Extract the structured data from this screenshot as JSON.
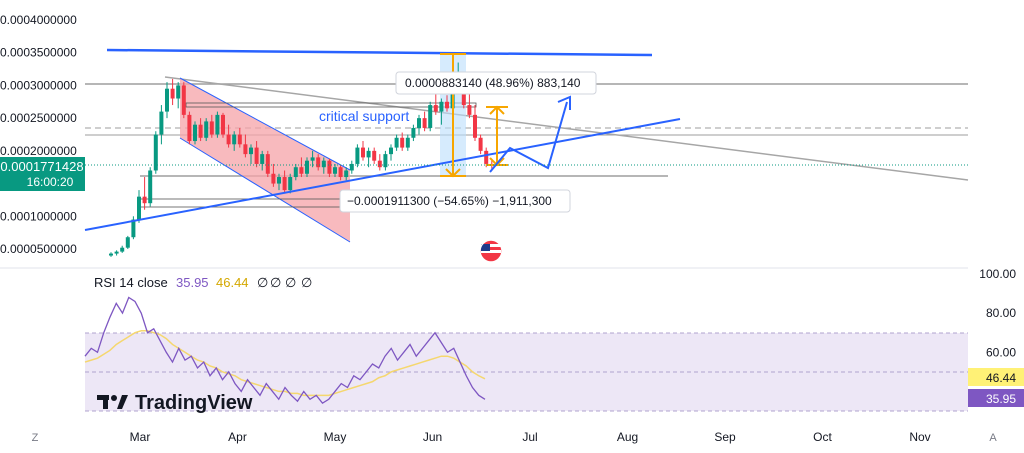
{
  "chart_data": [
    {
      "type": "candlestick",
      "title": "",
      "y_axis": {
        "ticks": [
          "0.0004000000",
          "0.0003500000",
          "0.0003000000",
          "0.0002500000",
          "0.0002000000",
          "0.0001500000",
          "0.0001000000",
          "0.0000500000"
        ],
        "tick_values": [
          0.0004,
          0.00035,
          0.0003,
          0.00025,
          0.0002,
          0.00015,
          0.0001,
          5e-05
        ],
        "range": [
          3e-05,
          0.00042
        ],
        "current_price_label": "0.0001771428",
        "countdown_label": "16:00:20",
        "current_price": 0.0001771428
      },
      "x_axis": {
        "ticks": [
          "Mar",
          "Apr",
          "May",
          "Jun",
          "Jul",
          "Aug",
          "Sep",
          "Oct",
          "Nov"
        ]
      },
      "candles": [
        {
          "t": -5,
          "o": 4e-05,
          "h": 4.5e-05,
          "l": 3.8e-05,
          "c": 4.3e-05
        },
        {
          "t": -4,
          "o": 4.3e-05,
          "h": 4.8e-05,
          "l": 4e-05,
          "c": 4.6e-05
        },
        {
          "t": -3,
          "o": 4.6e-05,
          "h": 5.5e-05,
          "l": 4.4e-05,
          "c": 5.2e-05
        },
        {
          "t": -2,
          "o": 5.2e-05,
          "h": 7e-05,
          "l": 5e-05,
          "c": 6.8e-05
        },
        {
          "t": -1,
          "o": 6.8e-05,
          "h": 0.0001,
          "l": 6.5e-05,
          "c": 9.5e-05
        },
        {
          "t": 0,
          "o": 9.5e-05,
          "h": 0.00014,
          "l": 9e-05,
          "c": 0.00013
        },
        {
          "t": 1,
          "o": 0.00013,
          "h": 0.00016,
          "l": 0.00011,
          "c": 0.00012
        },
        {
          "t": 2,
          "o": 0.00012,
          "h": 0.000175,
          "l": 0.000115,
          "c": 0.00017
        },
        {
          "t": 3,
          "o": 0.00017,
          "h": 0.00023,
          "l": 0.000165,
          "c": 0.000225
        },
        {
          "t": 4,
          "o": 0.000225,
          "h": 0.00027,
          "l": 0.00021,
          "c": 0.00026
        },
        {
          "t": 5,
          "o": 0.00026,
          "h": 0.000305,
          "l": 0.00025,
          "c": 0.000295
        },
        {
          "t": 6,
          "o": 0.000295,
          "h": 0.00031,
          "l": 0.00027,
          "c": 0.00028
        },
        {
          "t": 7,
          "o": 0.00028,
          "h": 0.000305,
          "l": 0.000265,
          "c": 0.0003
        },
        {
          "t": 8,
          "o": 0.0003,
          "h": 0.000305,
          "l": 0.00025,
          "c": 0.000255
        },
        {
          "t": 9,
          "o": 0.000255,
          "h": 0.00026,
          "l": 0.00021,
          "c": 0.000215
        },
        {
          "t": 10,
          "o": 0.000215,
          "h": 0.000245,
          "l": 0.00021,
          "c": 0.00024
        },
        {
          "t": 11,
          "o": 0.00024,
          "h": 0.00025,
          "l": 0.000215,
          "c": 0.00022
        },
        {
          "t": 12,
          "o": 0.00022,
          "h": 0.00025,
          "l": 0.000215,
          "c": 0.000245
        },
        {
          "t": 13,
          "o": 0.000245,
          "h": 0.000255,
          "l": 0.00022,
          "c": 0.000225
        },
        {
          "t": 14,
          "o": 0.000225,
          "h": 0.00026,
          "l": 0.00022,
          "c": 0.000255
        },
        {
          "t": 15,
          "o": 0.000255,
          "h": 0.000258,
          "l": 0.00022,
          "c": 0.000225
        },
        {
          "t": 16,
          "o": 0.000225,
          "h": 0.00024,
          "l": 0.000205,
          "c": 0.00021
        },
        {
          "t": 17,
          "o": 0.00021,
          "h": 0.00023,
          "l": 0.0002,
          "c": 0.000225
        },
        {
          "t": 18,
          "o": 0.000225,
          "h": 0.000235,
          "l": 0.000205,
          "c": 0.00021
        },
        {
          "t": 19,
          "o": 0.00021,
          "h": 0.000225,
          "l": 0.00019,
          "c": 0.000195
        },
        {
          "t": 20,
          "o": 0.000195,
          "h": 0.00021,
          "l": 0.00018,
          "c": 0.000205
        },
        {
          "t": 21,
          "o": 0.000205,
          "h": 0.000215,
          "l": 0.000175,
          "c": 0.00018
        },
        {
          "t": 22,
          "o": 0.00018,
          "h": 0.0002,
          "l": 0.00017,
          "c": 0.000195
        },
        {
          "t": 23,
          "o": 0.000195,
          "h": 0.0002,
          "l": 0.00016,
          "c": 0.000165
        },
        {
          "t": 24,
          "o": 0.000165,
          "h": 0.00018,
          "l": 0.000145,
          "c": 0.00015
        },
        {
          "t": 25,
          "o": 0.00015,
          "h": 0.000165,
          "l": 0.00014,
          "c": 0.00016
        },
        {
          "t": 26,
          "o": 0.00016,
          "h": 0.00017,
          "l": 0.000135,
          "c": 0.00014
        },
        {
          "t": 27,
          "o": 0.00014,
          "h": 0.000165,
          "l": 0.000135,
          "c": 0.00016
        },
        {
          "t": 28,
          "o": 0.00016,
          "h": 0.00018,
          "l": 0.000155,
          "c": 0.000175
        },
        {
          "t": 29,
          "o": 0.000175,
          "h": 0.00019,
          "l": 0.00016,
          "c": 0.000165
        },
        {
          "t": 30,
          "o": 0.000165,
          "h": 0.00019,
          "l": 0.00016,
          "c": 0.000185
        },
        {
          "t": 31,
          "o": 0.000185,
          "h": 0.0002,
          "l": 0.000175,
          "c": 0.00019
        },
        {
          "t": 32,
          "o": 0.00019,
          "h": 0.000195,
          "l": 0.00017,
          "c": 0.000175
        },
        {
          "t": 33,
          "o": 0.000175,
          "h": 0.00019,
          "l": 0.000165,
          "c": 0.000185
        },
        {
          "t": 34,
          "o": 0.000185,
          "h": 0.000188,
          "l": 0.00016,
          "c": 0.000165
        },
        {
          "t": 35,
          "o": 0.000165,
          "h": 0.00018,
          "l": 0.00016,
          "c": 0.000175
        },
        {
          "t": 36,
          "o": 0.000175,
          "h": 0.000178,
          "l": 0.000155,
          "c": 0.00016
        },
        {
          "t": 37,
          "o": 0.00016,
          "h": 0.000175,
          "l": 0.000155,
          "c": 0.00017
        },
        {
          "t": 38,
          "o": 0.00017,
          "h": 0.000185,
          "l": 0.000165,
          "c": 0.00018
        },
        {
          "t": 39,
          "o": 0.00018,
          "h": 0.00021,
          "l": 0.000175,
          "c": 0.000205
        },
        {
          "t": 40,
          "o": 0.000205,
          "h": 0.000215,
          "l": 0.000185,
          "c": 0.00019
        },
        {
          "t": 41,
          "o": 0.00019,
          "h": 0.000205,
          "l": 0.000175,
          "c": 0.0002
        },
        {
          "t": 42,
          "o": 0.0002,
          "h": 0.000205,
          "l": 0.00018,
          "c": 0.000185
        },
        {
          "t": 43,
          "o": 0.000185,
          "h": 0.000195,
          "l": 0.00017,
          "c": 0.000175
        },
        {
          "t": 44,
          "o": 0.000175,
          "h": 0.0002,
          "l": 0.00017,
          "c": 0.000195
        },
        {
          "t": 45,
          "o": 0.000195,
          "h": 0.00021,
          "l": 0.000185,
          "c": 0.000205
        },
        {
          "t": 46,
          "o": 0.000205,
          "h": 0.000225,
          "l": 0.0002,
          "c": 0.00022
        },
        {
          "t": 47,
          "o": 0.00022,
          "h": 0.000228,
          "l": 0.0002,
          "c": 0.000205
        },
        {
          "t": 48,
          "o": 0.000205,
          "h": 0.000225,
          "l": 0.0002,
          "c": 0.00022
        },
        {
          "t": 49,
          "o": 0.00022,
          "h": 0.00024,
          "l": 0.000215,
          "c": 0.000235
        },
        {
          "t": 50,
          "o": 0.000235,
          "h": 0.000255,
          "l": 0.000225,
          "c": 0.00025
        },
        {
          "t": 51,
          "o": 0.00025,
          "h": 0.00026,
          "l": 0.00023,
          "c": 0.000235
        },
        {
          "t": 52,
          "o": 0.000235,
          "h": 0.000275,
          "l": 0.00023,
          "c": 0.00027
        },
        {
          "t": 53,
          "o": 0.00027,
          "h": 0.00029,
          "l": 0.000255,
          "c": 0.00026
        },
        {
          "t": 54,
          "o": 0.00026,
          "h": 0.00028,
          "l": 0.00024,
          "c": 0.000275
        },
        {
          "t": 55,
          "o": 0.000275,
          "h": 0.000285,
          "l": 0.00026,
          "c": 0.000265
        },
        {
          "t": 56,
          "o": 0.000265,
          "h": 0.00031,
          "l": 0.00026,
          "c": 0.0003
        },
        {
          "t": 57,
          "o": 0.0003,
          "h": 0.000335,
          "l": 0.00029,
          "c": 0.000315
        },
        {
          "t": 58,
          "o": 0.000315,
          "h": 0.00032,
          "l": 0.000265,
          "c": 0.00027
        },
        {
          "t": 59,
          "o": 0.00027,
          "h": 0.00029,
          "l": 0.00025,
          "c": 0.000255
        },
        {
          "t": 60,
          "o": 0.000255,
          "h": 0.00027,
          "l": 0.000215,
          "c": 0.00022
        },
        {
          "t": 61,
          "o": 0.00022,
          "h": 0.000225,
          "l": 0.000195,
          "c": 0.0002
        },
        {
          "t": 62,
          "o": 0.0002,
          "h": 0.000205,
          "l": 0.000175,
          "c": 0.00018
        },
        {
          "t": 63,
          "o": 0.00018,
          "h": 0.000185,
          "l": 0.000172,
          "c": 0.000177
        }
      ],
      "annotations": {
        "critical_support_label": "critical support",
        "measure_up_label": "0.0000883140 (48.96%) 883,140",
        "measure_down_label": "−0.0001911300 (−54.65%) −1,911,300"
      }
    },
    {
      "type": "line",
      "title": "RSI 14 close",
      "legend_values": [
        "35.95",
        "46.44",
        "∅",
        "∅",
        "∅",
        "∅"
      ],
      "y_axis": {
        "ticks": [
          "100.00",
          "80.00",
          "60.00"
        ],
        "range": [
          20,
          100
        ]
      },
      "rsi_badge": "35.95",
      "ma_badge": "46.44",
      "series": [
        {
          "name": "RSI",
          "values": [
            58,
            62,
            60,
            70,
            78,
            85,
            80,
            88,
            86,
            80,
            70,
            72,
            66,
            60,
            55,
            62,
            56,
            58,
            52,
            55,
            48,
            52,
            46,
            50,
            44,
            40,
            46,
            42,
            38,
            44,
            40,
            36,
            42,
            38,
            35,
            40,
            36,
            38,
            34,
            36,
            40,
            44,
            42,
            48,
            46,
            50,
            54,
            52,
            58,
            62,
            56,
            60,
            64,
            58,
            62,
            66,
            70,
            65,
            60,
            62,
            55,
            48,
            42,
            38,
            35.95
          ]
        },
        {
          "name": "RSI-based MA",
          "values": [
            55,
            56,
            57,
            59,
            61,
            64,
            66,
            68,
            70,
            71,
            71,
            70,
            69,
            67,
            64,
            62,
            60,
            58,
            56,
            55,
            53,
            52,
            50,
            49,
            48,
            46,
            45,
            44,
            43,
            42,
            41,
            40,
            40,
            39,
            39,
            38,
            38,
            38,
            38,
            38,
            39,
            40,
            41,
            42,
            43,
            44,
            45,
            47,
            48,
            50,
            51,
            52,
            53,
            54,
            55,
            56,
            57,
            58,
            58,
            57,
            55,
            53,
            50,
            48,
            46.44
          ]
        }
      ]
    }
  ],
  "branding": {
    "logo_text": "TradingView"
  },
  "corner_left": "Z",
  "corner_right": "A",
  "colors": {
    "up": "#089981",
    "down": "#f23645",
    "trendline": "#2962ff",
    "measure": "#f7a600",
    "rsi": "#7e57c2",
    "rsi_ma": "#f5d76e",
    "rsi_band": "#ede7f6",
    "price_badge": "#089981",
    "grey_line": "#9e9e9e",
    "channel_fill": "#f5a3a8"
  }
}
